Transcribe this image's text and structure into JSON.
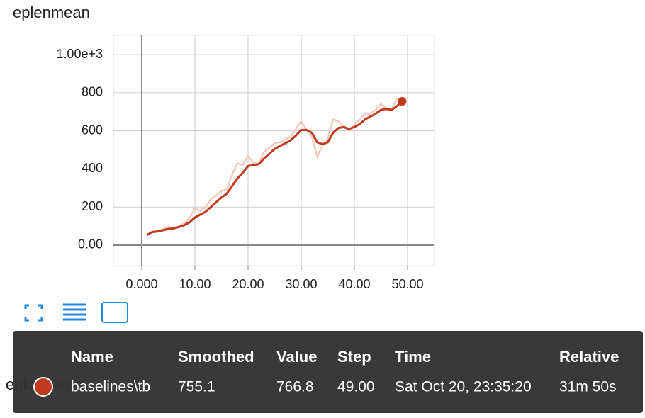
{
  "chart_data": {
    "type": "line",
    "title": "eplenmean",
    "x": [
      1,
      2,
      3,
      4,
      5,
      6,
      7,
      8,
      9,
      10,
      11,
      12,
      13,
      14,
      15,
      16,
      17,
      18,
      19,
      20,
      21,
      22,
      23,
      24,
      25,
      26,
      27,
      28,
      29,
      30,
      31,
      32,
      33,
      34,
      35,
      36,
      37,
      38,
      39,
      40,
      41,
      42,
      43,
      44,
      45,
      46,
      47,
      48,
      49
    ],
    "series": [
      {
        "name": "baselines\\tb",
        "color": "#bf3a1e",
        "values": [
          55,
          68,
          72,
          78,
          85,
          88,
          95,
          105,
          120,
          145,
          160,
          175,
          200,
          225,
          250,
          270,
          310,
          350,
          380,
          415,
          420,
          425,
          455,
          480,
          505,
          520,
          535,
          550,
          575,
          605,
          605,
          590,
          540,
          530,
          540,
          590,
          615,
          620,
          610,
          620,
          635,
          660,
          675,
          690,
          710,
          715,
          710,
          730,
          755.1
        ]
      },
      {
        "color": "#f2cbbf",
        "values": [
          50,
          75,
          70,
          85,
          95,
          90,
          100,
          115,
          140,
          195,
          180,
          200,
          240,
          260,
          285,
          290,
          370,
          430,
          420,
          470,
          430,
          430,
          490,
          510,
          535,
          540,
          555,
          570,
          610,
          650,
          605,
          570,
          465,
          520,
          560,
          660,
          650,
          625,
          600,
          635,
          660,
          690,
          690,
          710,
          740,
          720,
          710,
          770,
          766.8
        ]
      }
    ],
    "xlim": [
      -5.33,
      55.07
    ],
    "ylim": [
      -108,
      1101
    ],
    "xticks": [
      {
        "value": 0,
        "label": "0.000"
      },
      {
        "value": 10,
        "label": "10.00"
      },
      {
        "value": 20,
        "label": "20.00"
      },
      {
        "value": 30,
        "label": "30.00"
      },
      {
        "value": 40,
        "label": "40.00"
      },
      {
        "value": 50,
        "label": "50.00"
      }
    ],
    "yticks": [
      {
        "value": 0,
        "label": "0.00"
      },
      200,
      400,
      600,
      800,
      {
        "value": 1000,
        "label": "1.00e+3"
      }
    ],
    "grid": true
  },
  "tooltip": {
    "columns": [
      "Name",
      "Smoothed",
      "Value",
      "Step",
      "Time",
      "Relative"
    ],
    "row": [
      "baselines\\tb",
      "755.1",
      "766.8",
      "49.00",
      "Sat Oct 20, 23:35:20",
      "31m 50s"
    ]
  },
  "next_card": {
    "title": "eplenmean"
  }
}
